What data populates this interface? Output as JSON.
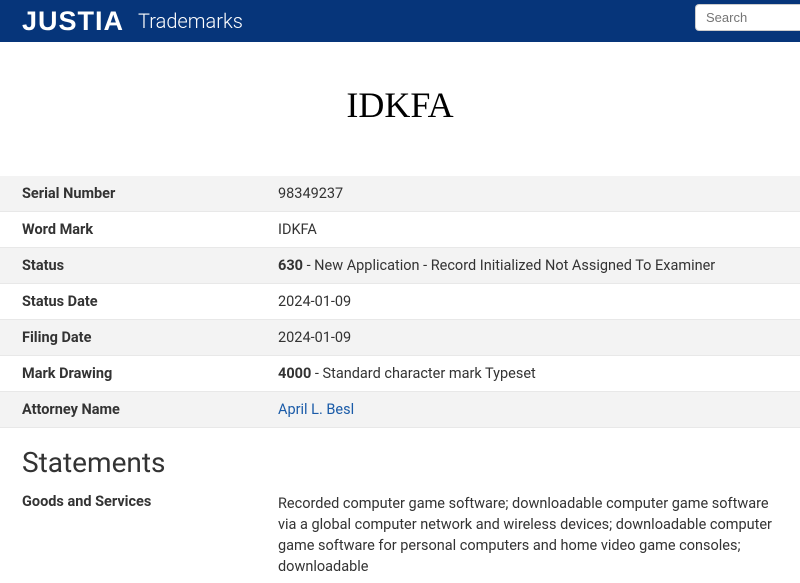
{
  "header": {
    "logo": "JUSTIA",
    "subtitle": "Trademarks",
    "search_placeholder": "Search"
  },
  "mark": {
    "text": "IDKFA"
  },
  "rows": [
    {
      "label": "Serial Number",
      "value": "98349237",
      "bold_prefix": "",
      "rest": "",
      "link": false,
      "striped": true
    },
    {
      "label": "Word Mark",
      "value": "IDKFA",
      "bold_prefix": "",
      "rest": "",
      "link": false,
      "striped": false
    },
    {
      "label": "Status",
      "value": "",
      "bold_prefix": "630",
      "rest": " - New Application - Record Initialized Not Assigned To Examiner",
      "link": false,
      "striped": true
    },
    {
      "label": "Status Date",
      "value": "2024-01-09",
      "bold_prefix": "",
      "rest": "",
      "link": false,
      "striped": false
    },
    {
      "label": "Filing Date",
      "value": "2024-01-09",
      "bold_prefix": "",
      "rest": "",
      "link": false,
      "striped": true
    },
    {
      "label": "Mark Drawing",
      "value": "",
      "bold_prefix": "4000",
      "rest": " - Standard character mark Typeset",
      "link": false,
      "striped": false
    },
    {
      "label": "Attorney Name",
      "value": "April L. Besl",
      "bold_prefix": "",
      "rest": "",
      "link": true,
      "striped": true
    }
  ],
  "statements": {
    "heading": "Statements",
    "goods_label": "Goods and Services",
    "goods_value": "Recorded computer game software; downloadable computer game software via a global computer network and wireless devices; downloadable computer game software for personal computers and home video game consoles; downloadable"
  },
  "colors": {
    "header_bg": "#06357a",
    "link": "#1a5ba8",
    "stripe": "#f3f3f3",
    "border": "#e8e8e8"
  }
}
